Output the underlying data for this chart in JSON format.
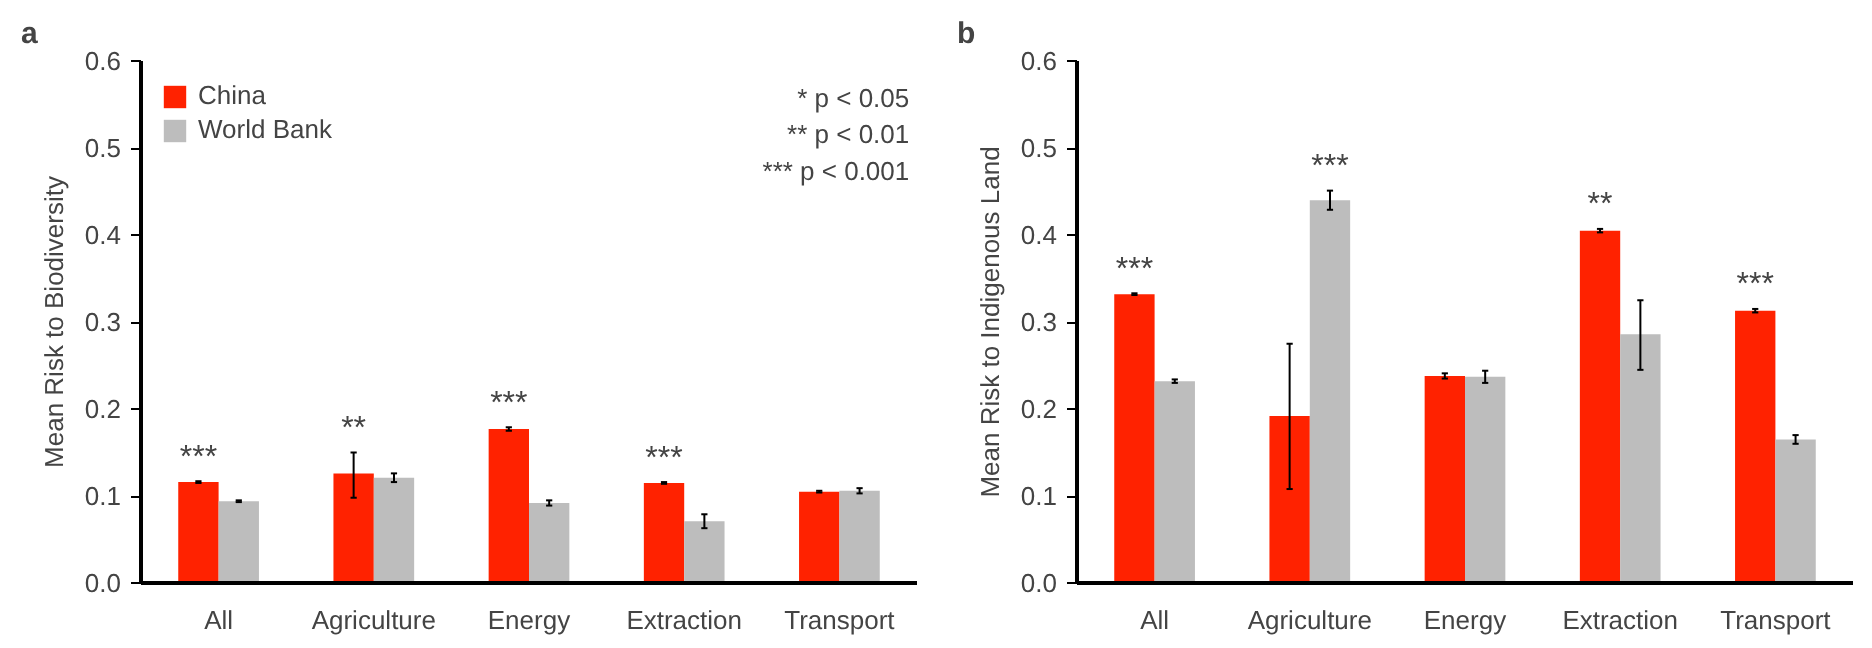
{
  "chart_data": [
    {
      "type": "bar",
      "title": "a",
      "ylabel": "Mean Risk to Biodiversity",
      "categories": [
        "All",
        "Agriculture",
        "Energy",
        "Extraction",
        "Transport"
      ],
      "series": [
        {
          "name": "China",
          "color": "#ff2200",
          "values": [
            0.116,
            0.126,
            0.177,
            0.115,
            0.105
          ],
          "errors": [
            0.001,
            [
              0.098,
              0.15
            ],
            0.002,
            0.001,
            0.001
          ],
          "value_labels": [
            "***",
            "**",
            "***",
            "***",
            null
          ]
        },
        {
          "name": "World Bank",
          "color": "#bdbdbd",
          "values": [
            0.094,
            0.121,
            0.092,
            0.071,
            0.106
          ],
          "errors": [
            0.001,
            0.005,
            0.003,
            0.008,
            0.003
          ]
        }
      ],
      "ylim": [
        0,
        0.6
      ],
      "yticks": [
        {
          "value": 0,
          "label": "0.0"
        },
        0.1,
        0.2,
        0.3,
        0.4,
        0.5,
        0.6
      ],
      "legend": "top left",
      "grid": false,
      "annotations": [
        "* p < 0.05",
        "** p < 0.01",
        "*** p < 0.001"
      ]
    },
    {
      "type": "bar",
      "title": "b",
      "ylabel": "Mean Risk to Indigenous Land",
      "categories": [
        "All",
        "Agriculture",
        "Energy",
        "Extraction",
        "Transport"
      ],
      "series": [
        {
          "color": "#ff2200",
          "values": [
            0.332,
            0.192,
            0.238,
            0.405,
            0.313
          ],
          "errors": [
            0.001,
            [
              0.108,
              0.275
            ],
            0.003,
            0.002,
            0.002
          ],
          "value_labels": [
            "***",
            null,
            null,
            "**",
            "***"
          ]
        },
        {
          "color": "#bdbdbd",
          "values": [
            0.232,
            0.44,
            0.237,
            0.286,
            0.165
          ],
          "errors": [
            0.002,
            0.011,
            0.007,
            [
              0.245,
              0.325
            ],
            0.005
          ],
          "value_labels": [
            null,
            "***",
            null,
            null,
            null
          ]
        }
      ],
      "ylim": [
        0,
        0.6
      ],
      "yticks": [
        {
          "value": 0,
          "label": "0.0"
        },
        0.1,
        0.2,
        0.3,
        0.4,
        0.5,
        0.6
      ],
      "grid": false
    }
  ]
}
